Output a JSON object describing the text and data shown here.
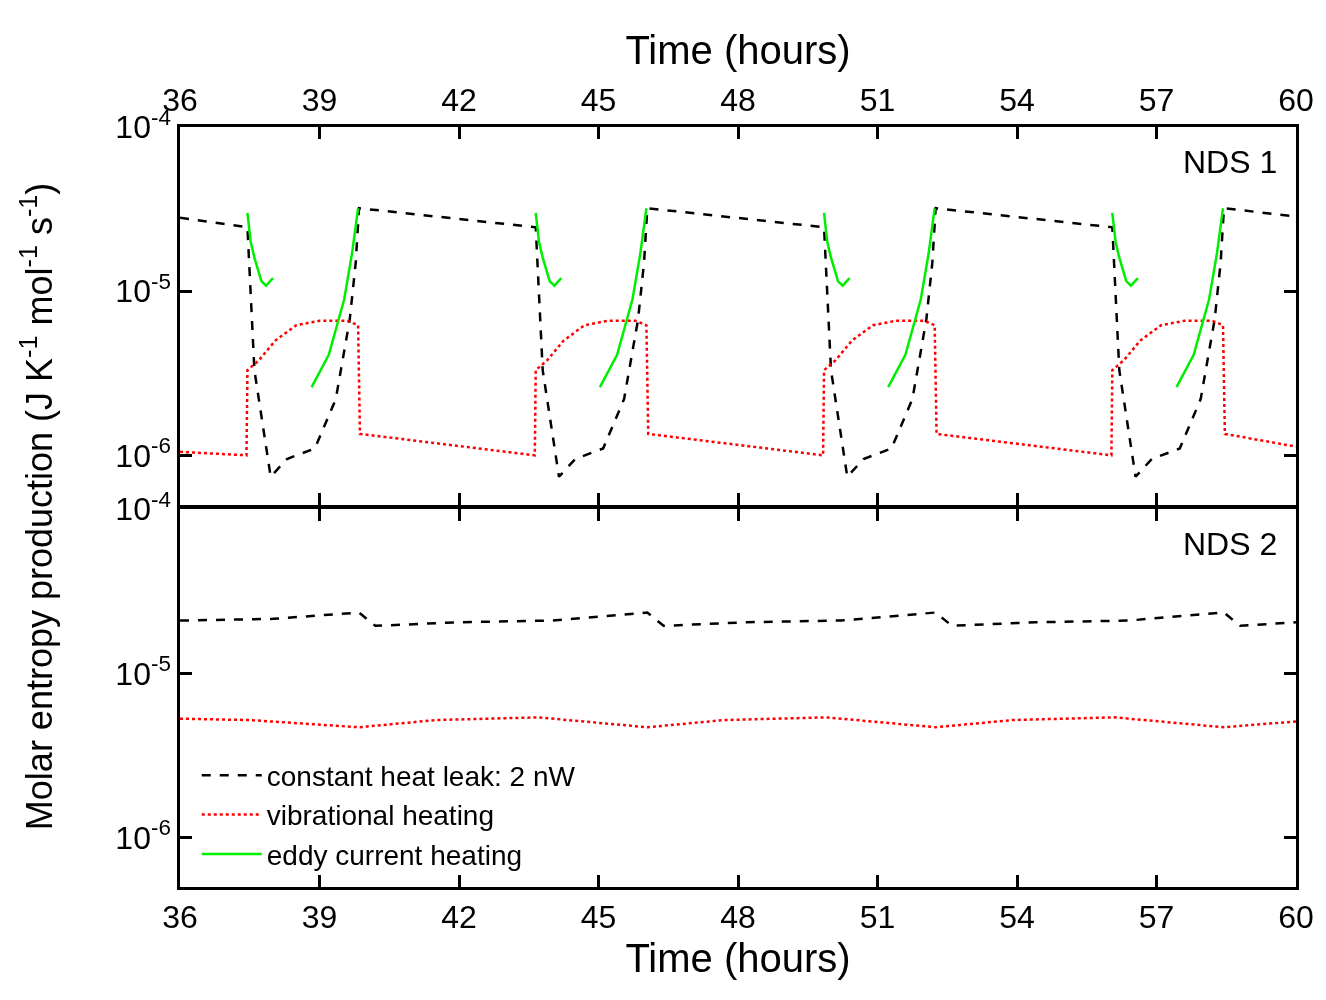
{
  "chart_data": [
    {
      "type": "line",
      "log": "y",
      "annotations": [
        "NDS 1"
      ],
      "ylabel": "Molar entropy production (J K$^{-1}$ mol$^{-1}$ s$^{-1}$)",
      "x2label": "Time (hours)",
      "xlim": [
        36,
        60
      ],
      "xticks": [
        {
          "value": 36,
          "label": null
        },
        {
          "value": 39,
          "label": null
        },
        {
          "value": 42,
          "label": null
        },
        {
          "value": 45,
          "label": null
        },
        {
          "value": 48,
          "label": null
        },
        {
          "value": 51,
          "label": null
        },
        {
          "value": 54,
          "label": null
        },
        {
          "value": 57,
          "label": null
        },
        {
          "value": 60,
          "label": null
        }
      ],
      "x2lim": [
        36,
        60
      ],
      "x2ticks": [
        36,
        39,
        42,
        45,
        48,
        51,
        54,
        57,
        60
      ],
      "ylim": [
        5e-07,
        0.0001
      ],
      "yticks": [
        {
          "value": 0.0001,
          "label": "10$^{-4}$"
        },
        {
          "value": 1e-05,
          "label": "10$^{-5}$"
        },
        {
          "value": 1e-06,
          "label": "10$^{-6}$"
        }
      ],
      "tick_labels": "y",
      "legend": "bottom left",
      "series": [
        {
          "name": "constant heat leak: 2 nW",
          "color": "#000000",
          "line_style": "dashed",
          "x": [
            36,
            37.45,
            37.6,
            37.95,
            38.3,
            38.9,
            39.35,
            39.65,
            39.78,
            39.85,
            43.65,
            43.8,
            44.15,
            44.5,
            45.1,
            45.55,
            45.85,
            45.98,
            46.05,
            49.85,
            50.0,
            50.35,
            50.7,
            51.3,
            51.75,
            52.05,
            52.18,
            52.25,
            56.05,
            56.2,
            56.55,
            56.9,
            57.5,
            57.95,
            58.25,
            58.38,
            58.45,
            60
          ],
          "values": [
            2.8e-05,
            2.45e-05,
            3.3e-06,
            7.4e-07,
            9.5e-07,
            1.1e-06,
            2.2e-06,
            6.7e-06,
            1.5e-05,
            3.2e-05,
            2.45e-05,
            3.3e-06,
            7.4e-07,
            9.5e-07,
            1.1e-06,
            2.2e-06,
            6.7e-06,
            1.5e-05,
            3.2e-05,
            2.45e-05,
            3.3e-06,
            7.4e-07,
            9.5e-07,
            1.1e-06,
            2.2e-06,
            6.7e-06,
            1.5e-05,
            3.2e-05,
            2.45e-05,
            3.3e-06,
            7.4e-07,
            9.5e-07,
            1.1e-06,
            2.2e-06,
            6.7e-06,
            1.5e-05,
            3.2e-05,
            2.85e-05
          ]
        },
        {
          "name": "vibrational heating",
          "color": "#ff0000",
          "line_style": "dotted",
          "x": [
            36,
            37.43,
            37.45,
            37.7,
            38.05,
            38.5,
            39.0,
            39.6,
            39.83,
            39.87,
            43.63,
            43.65,
            43.9,
            44.25,
            44.7,
            45.2,
            45.8,
            46.03,
            46.07,
            49.83,
            49.85,
            50.1,
            50.45,
            50.9,
            51.4,
            52.0,
            52.23,
            52.27,
            56.03,
            56.05,
            56.3,
            56.65,
            57.1,
            57.6,
            58.2,
            58.43,
            58.47,
            60
          ],
          "values": [
            1.05e-06,
            1e-06,
            3.3e-06,
            3.8e-06,
            5e-06,
            6.2e-06,
            6.6e-06,
            6.6e-06,
            6.2e-06,
            1.35e-06,
            1e-06,
            3.3e-06,
            3.8e-06,
            5e-06,
            6.2e-06,
            6.6e-06,
            6.6e-06,
            6.2e-06,
            1.35e-06,
            1e-06,
            3.3e-06,
            3.8e-06,
            5e-06,
            6.2e-06,
            6.6e-06,
            6.6e-06,
            6.2e-06,
            1.35e-06,
            1e-06,
            3.3e-06,
            3.8e-06,
            5e-06,
            6.2e-06,
            6.6e-06,
            6.6e-06,
            6.2e-06,
            1.35e-06,
            1.13e-06
          ]
        },
        {
          "name": "eddy current heating",
          "color": "#00ee00",
          "line_style": "solid",
          "x": [
            37.45,
            37.52,
            37.6,
            37.75,
            37.85,
            38.0,
            38.4,
            38.83,
            39.2,
            39.53,
            39.7,
            39.83,
            41.7,
            43.65,
            43.72,
            43.8,
            43.95,
            44.05,
            44.2,
            44.6,
            45.03,
            45.4,
            45.73,
            45.9,
            46.03,
            47.9,
            49.85,
            49.92,
            50.0,
            50.15,
            50.25,
            50.4,
            50.8,
            51.23,
            51.6,
            51.93,
            52.1,
            52.23,
            54.1,
            56.05,
            56.12,
            56.2,
            56.35,
            56.45,
            56.6,
            57.0,
            57.43,
            57.8,
            58.13,
            58.3,
            58.43
          ],
          "values": [
            3e-05,
            2e-05,
            1.6e-05,
            1.15e-05,
            1.08e-05,
            1.2e-05,
            null,
            2.6e-06,
            4.1e-06,
            8.9e-06,
            1.7e-05,
            3.2e-05,
            null,
            3e-05,
            2e-05,
            1.6e-05,
            1.15e-05,
            1.08e-05,
            1.2e-05,
            null,
            2.6e-06,
            4.1e-06,
            8.9e-06,
            1.7e-05,
            3.2e-05,
            null,
            3e-05,
            2e-05,
            1.6e-05,
            1.15e-05,
            1.08e-05,
            1.2e-05,
            null,
            2.6e-06,
            4.1e-06,
            8.9e-06,
            1.7e-05,
            3.2e-05,
            null,
            3e-05,
            2e-05,
            1.6e-05,
            1.15e-05,
            1.08e-05,
            1.2e-05,
            null,
            2.6e-06,
            4.1e-06,
            8.9e-06,
            1.7e-05,
            3.2e-05
          ]
        }
      ]
    },
    {
      "type": "line",
      "log": "y",
      "annotations": [
        "NDS 2"
      ],
      "xlabel": "Time (hours)",
      "xlim": [
        36,
        60
      ],
      "xticks": [
        36,
        39,
        42,
        45,
        48,
        51,
        54,
        57,
        60
      ],
      "ylim": [
        5e-07,
        0.0001
      ],
      "yticks": [
        {
          "value": 0.0001,
          "label": "10$^{-4}$"
        },
        {
          "value": 1e-05,
          "label": "10$^{-5}$"
        },
        {
          "value": 1e-06,
          "label": "10$^{-6}$"
        }
      ],
      "legend": "bottom left",
      "series": [
        {
          "name": "constant heat leak: 2 nW",
          "color": "#000000",
          "line_style": "dashed",
          "x": [
            36,
            38,
            39.85,
            40.2,
            42,
            44,
            46.05,
            46.4,
            48.2,
            50.2,
            52.25,
            52.6,
            54.4,
            56.4,
            58.45,
            58.8,
            60
          ],
          "values": [
            2.1e-05,
            2.15e-05,
            2.35e-05,
            1.95e-05,
            2.05e-05,
            2.1e-05,
            2.35e-05,
            1.95e-05,
            2.05e-05,
            2.1e-05,
            2.35e-05,
            1.95e-05,
            2.05e-05,
            2.1e-05,
            2.35e-05,
            1.95e-05,
            2.05e-05
          ]
        },
        {
          "name": "vibrational heating",
          "color": "#ff0000",
          "line_style": "dotted",
          "x": [
            36,
            37.5,
            39.85,
            41.5,
            43.7,
            46.05,
            47.7,
            49.9,
            52.25,
            53.9,
            56.1,
            58.45,
            60
          ],
          "values": [
            5.3e-06,
            5.2e-06,
            4.7e-06,
            5.2e-06,
            5.4e-06,
            4.7e-06,
            5.2e-06,
            5.4e-06,
            4.7e-06,
            5.2e-06,
            5.4e-06,
            4.7e-06,
            5.1e-06
          ]
        }
      ]
    }
  ]
}
